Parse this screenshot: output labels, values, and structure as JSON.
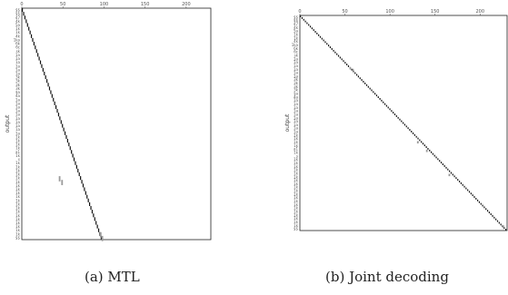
{
  "chart_data": [
    {
      "type": "heatmap",
      "title": "",
      "ylabel": "output",
      "xlim": [
        0,
        230
      ],
      "x_ticks": [
        "0",
        "50",
        "100",
        "150",
        "200"
      ],
      "n_rows": 62,
      "y_tick_labels": [
        "$$",
        "$$",
        "47",
        "4k",
        "5a",
        "1k",
        "1k",
        "4k",
        "1ka",
        "6k",
        "6c",
        "sk",
        "1a",
        "1a",
        "1a",
        "1a",
        "1a",
        "1a",
        "3k",
        "3k",
        "3k",
        "3k",
        "$a",
        "4a",
        "1a",
        "1a",
        "1a",
        "1a",
        "1a",
        "1a",
        "1a",
        "1a",
        "1a",
        "1a",
        "1k",
        "1k",
        "1k",
        "1k",
        "a1",
        "1k",
        "s",
        "1k",
        "1k",
        "1k",
        "1k",
        "1k",
        "1k",
        "1k",
        "1k",
        "1k",
        "1k",
        "1k",
        "1k",
        "1k",
        "1k",
        "1k",
        "1k",
        "1k",
        "1k",
        "1k",
        "1k",
        "$$"
      ],
      "alignment_end_x": 96,
      "highlighted_cells": [
        [
          45,
          45
        ],
        [
          48,
          46
        ],
        [
          95,
          60
        ],
        [
          97,
          61
        ]
      ],
      "caption": "(a) MTL"
    },
    {
      "type": "heatmap",
      "title": "",
      "ylabel": "output",
      "xlim": [
        0,
        230
      ],
      "x_ticks": [
        "0",
        "50",
        "100",
        "150",
        "200"
      ],
      "n_rows": 125,
      "y_tick_labels": [
        "$$",
        "$$",
        "47",
        "4k",
        "5a",
        "1k",
        "1k",
        "4k",
        "1ka",
        "6k",
        "6c",
        "sk",
        "1a",
        "1a",
        "1a",
        "1a",
        "1a",
        "1a",
        "3k",
        "3k",
        "3k",
        "3k",
        "$a",
        "4a",
        "1a",
        "1a",
        "1a",
        "1a",
        "1a",
        "1a",
        "1a",
        "1a",
        "1a",
        "1a",
        "1k",
        "1k",
        "1k",
        "1k",
        "a1",
        "1k",
        "s",
        "1k",
        "1k",
        "1k",
        "1k",
        "1k",
        "1k",
        "1k",
        "1k",
        "1k",
        "1k",
        "1k",
        "1k",
        "1k",
        "1k",
        "1k",
        "1k",
        "1k",
        "1k",
        "1k",
        "1k",
        "$$"
      ],
      "alignment_end_x": 228,
      "highlighted_cells": [
        [
          55,
          30
        ],
        [
          58,
          31
        ],
        [
          130,
          73
        ],
        [
          140,
          78
        ],
        [
          165,
          92
        ],
        [
          225,
          122
        ]
      ],
      "caption": "(b) Joint decoding"
    }
  ]
}
